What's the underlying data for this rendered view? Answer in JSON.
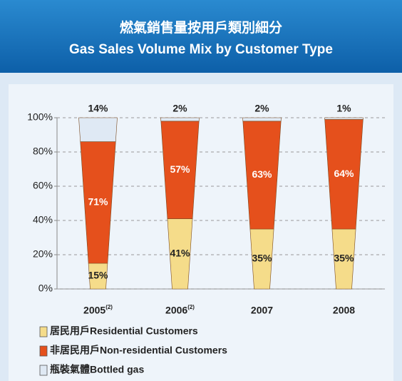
{
  "chart_data": {
    "type": "cone-stack",
    "title": "燃氣銷售量按用戶類別細分",
    "subtitle": "Gas Sales Volume Mix by Customer Type",
    "categories": [
      "2005",
      "2006",
      "2007",
      "2008"
    ],
    "category_notes": [
      "(2)",
      "(2)",
      null,
      null
    ],
    "series": [
      {
        "name": "居民用戶Residential Customers",
        "color": "#f5dc8a",
        "values": [
          15,
          41,
          35,
          35
        ],
        "value_labels": [
          "15%",
          "41%",
          "35%",
          "35%"
        ]
      },
      {
        "name": "非居民用戶Non-residential Customers",
        "color": "#e5501c",
        "values": [
          71,
          57,
          63,
          64
        ],
        "value_labels": [
          "71%",
          "57%",
          "63%",
          "64%"
        ]
      },
      {
        "name": "瓶裝氣體Bottled gas",
        "color": "#dfe9f4",
        "values": [
          14,
          2,
          2,
          1
        ],
        "value_labels": [
          "14%",
          "2%",
          "2%",
          "1%"
        ]
      }
    ],
    "ylim": [
      0,
      100
    ],
    "yticks": [
      {
        "value": 0,
        "label": "0%"
      },
      {
        "value": 20,
        "label": "20%"
      },
      {
        "value": 40,
        "label": "40%"
      },
      {
        "value": 60,
        "label": "60%"
      },
      {
        "value": 80,
        "label": "80%"
      },
      {
        "value": 100,
        "label": "100%"
      }
    ],
    "grid": true
  }
}
